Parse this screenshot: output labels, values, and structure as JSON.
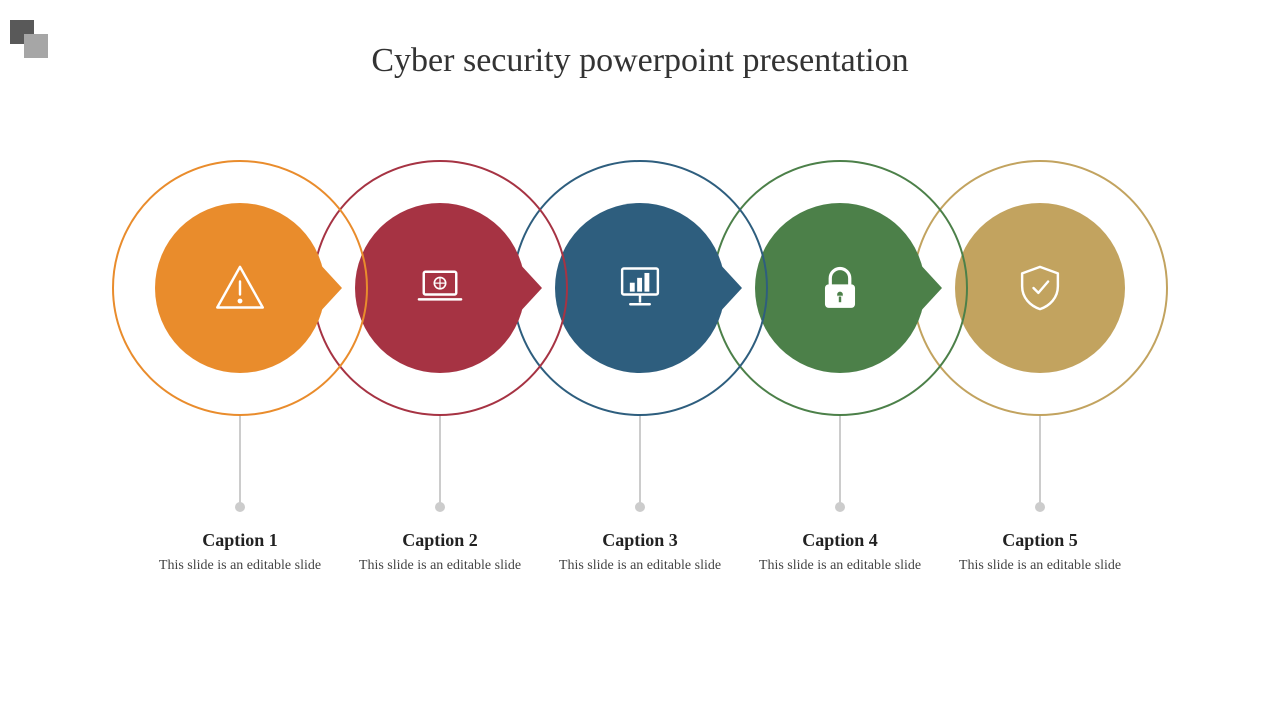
{
  "slide": {
    "title": "Cyber security powerpoint presentation",
    "background_color": "#ffffff",
    "corner_decor": {
      "sq1_color": "#595959",
      "sq2_color": "#a6a6a6"
    }
  },
  "diagram": {
    "type": "infographic",
    "layout": "horizontal_overlapping_circles",
    "outer_ring_diameter": 256,
    "inner_circle_diameter": 170,
    "spacing": 200,
    "connector_color": "#cccccc",
    "nodes": [
      {
        "id": 0,
        "color": "#e98c2c",
        "icon": "warning",
        "caption_title": "Caption 1",
        "caption_desc": "This slide is an editable slide"
      },
      {
        "id": 1,
        "color": "#a63343",
        "icon": "laptop",
        "caption_title": "Caption 2",
        "caption_desc": "This slide is an editable slide"
      },
      {
        "id": 2,
        "color": "#2e5e7e",
        "icon": "chart",
        "caption_title": "Caption 3",
        "caption_desc": "This slide is an editable slide"
      },
      {
        "id": 3,
        "color": "#4c8049",
        "icon": "lock",
        "caption_title": "Caption 4",
        "caption_desc": "This slide is an editable slide"
      },
      {
        "id": 4,
        "color": "#c2a35f",
        "icon": "shield",
        "caption_title": "Caption 5",
        "caption_desc": "This slide is an editable slide"
      }
    ]
  }
}
